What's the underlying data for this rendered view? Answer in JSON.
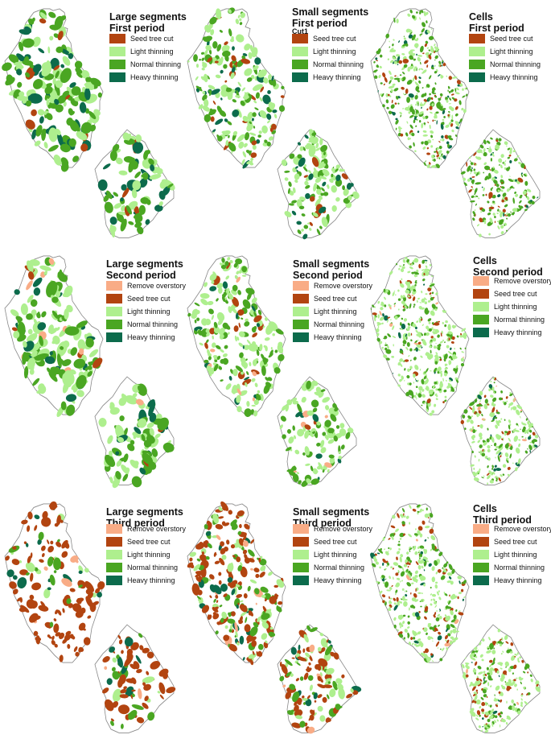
{
  "colors": {
    "remove_overstory": "#f9ac86",
    "seed_tree_cut": "#b24410",
    "light_thinning": "#aeef8e",
    "normal_thinning": "#4aa622",
    "heavy_thinning": "#0c6b4c",
    "outline": "#8a8a8a"
  },
  "panels": [
    {
      "title1": "Large segments",
      "title2": "First period",
      "subtitle": "",
      "legend": [
        {
          "key": "seed_tree_cut",
          "label": "Seed tree cut"
        },
        {
          "key": "light_thinning",
          "label": "Light thinning"
        },
        {
          "key": "normal_thinning",
          "label": "Normal thinning"
        },
        {
          "key": "heavy_thinning",
          "label": "Heavy thinning"
        }
      ]
    },
    {
      "title1": "Small segments",
      "title2": "First period",
      "subtitle": "Cut1",
      "legend": [
        {
          "key": "seed_tree_cut",
          "label": "Seed tree cut"
        },
        {
          "key": "light_thinning",
          "label": "Light thinning"
        },
        {
          "key": "normal_thinning",
          "label": "Normal thinning"
        },
        {
          "key": "heavy_thinning",
          "label": "Heavy thinning"
        }
      ]
    },
    {
      "title1": "Cells",
      "title2": "First period",
      "subtitle": "",
      "legend": [
        {
          "key": "seed_tree_cut",
          "label": "Seed tree cut"
        },
        {
          "key": "light_thinning",
          "label": "Light thinning"
        },
        {
          "key": "normal_thinning",
          "label": "Normal thinning"
        },
        {
          "key": "heavy_thinning",
          "label": "Heavy thinning"
        }
      ]
    },
    {
      "title1": "Large segments",
      "title2": "Second period",
      "subtitle": "",
      "legend": [
        {
          "key": "remove_overstory",
          "label": "Remove overstory"
        },
        {
          "key": "seed_tree_cut",
          "label": "Seed tree cut"
        },
        {
          "key": "light_thinning",
          "label": "Light thinning"
        },
        {
          "key": "normal_thinning",
          "label": "Normal thinning"
        },
        {
          "key": "heavy_thinning",
          "label": "Heavy thinning"
        }
      ]
    },
    {
      "title1": "Small segments",
      "title2": "Second period",
      "subtitle": "",
      "legend": [
        {
          "key": "remove_overstory",
          "label": "Remove overstory"
        },
        {
          "key": "seed_tree_cut",
          "label": "Seed tree cut"
        },
        {
          "key": "light_thinning",
          "label": "Light thinning"
        },
        {
          "key": "normal_thinning",
          "label": "Normal thinning"
        },
        {
          "key": "heavy_thinning",
          "label": "Heavy thinning"
        }
      ]
    },
    {
      "title1": "Cells",
      "title2": "Second period",
      "subtitle": "",
      "legend": [
        {
          "key": "remove_overstory",
          "label": "Remove overstory"
        },
        {
          "key": "seed_tree_cut",
          "label": "Seed tree cut"
        },
        {
          "key": "light_thinning",
          "label": "Light thinning"
        },
        {
          "key": "normal_thinning",
          "label": "Normal thinning"
        },
        {
          "key": "heavy_thinning",
          "label": "Heavy thinning"
        }
      ]
    },
    {
      "title1": "Large segments",
      "title2": "Third period",
      "subtitle": "",
      "legend": [
        {
          "key": "remove_overstory",
          "label": "Remove overstory"
        },
        {
          "key": "seed_tree_cut",
          "label": "Seed tree cut"
        },
        {
          "key": "light_thinning",
          "label": "Light thinning"
        },
        {
          "key": "normal_thinning",
          "label": "Normal thinning"
        },
        {
          "key": "heavy_thinning",
          "label": "Heavy thinning"
        }
      ]
    },
    {
      "title1": "Small segments",
      "title2": "Third period",
      "subtitle": "",
      "legend": [
        {
          "key": "remove_overstory",
          "label": "Remove overstory"
        },
        {
          "key": "seed_tree_cut",
          "label": "Seed tree cut"
        },
        {
          "key": "light_thinning",
          "label": "Light thinning"
        },
        {
          "key": "normal_thinning",
          "label": "Normal thinning"
        },
        {
          "key": "heavy_thinning",
          "label": "Heavy thinning"
        }
      ]
    },
    {
      "title1": "Cells",
      "title2": "Third period",
      "subtitle": "",
      "legend": [
        {
          "key": "remove_overstory",
          "label": "Remove overstory"
        },
        {
          "key": "seed_tree_cut",
          "label": "Seed tree cut"
        },
        {
          "key": "light_thinning",
          "label": "Light thinning"
        },
        {
          "key": "normal_thinning",
          "label": "Normal thinning"
        },
        {
          "key": "heavy_thinning",
          "label": "Heavy thinning"
        }
      ]
    }
  ]
}
